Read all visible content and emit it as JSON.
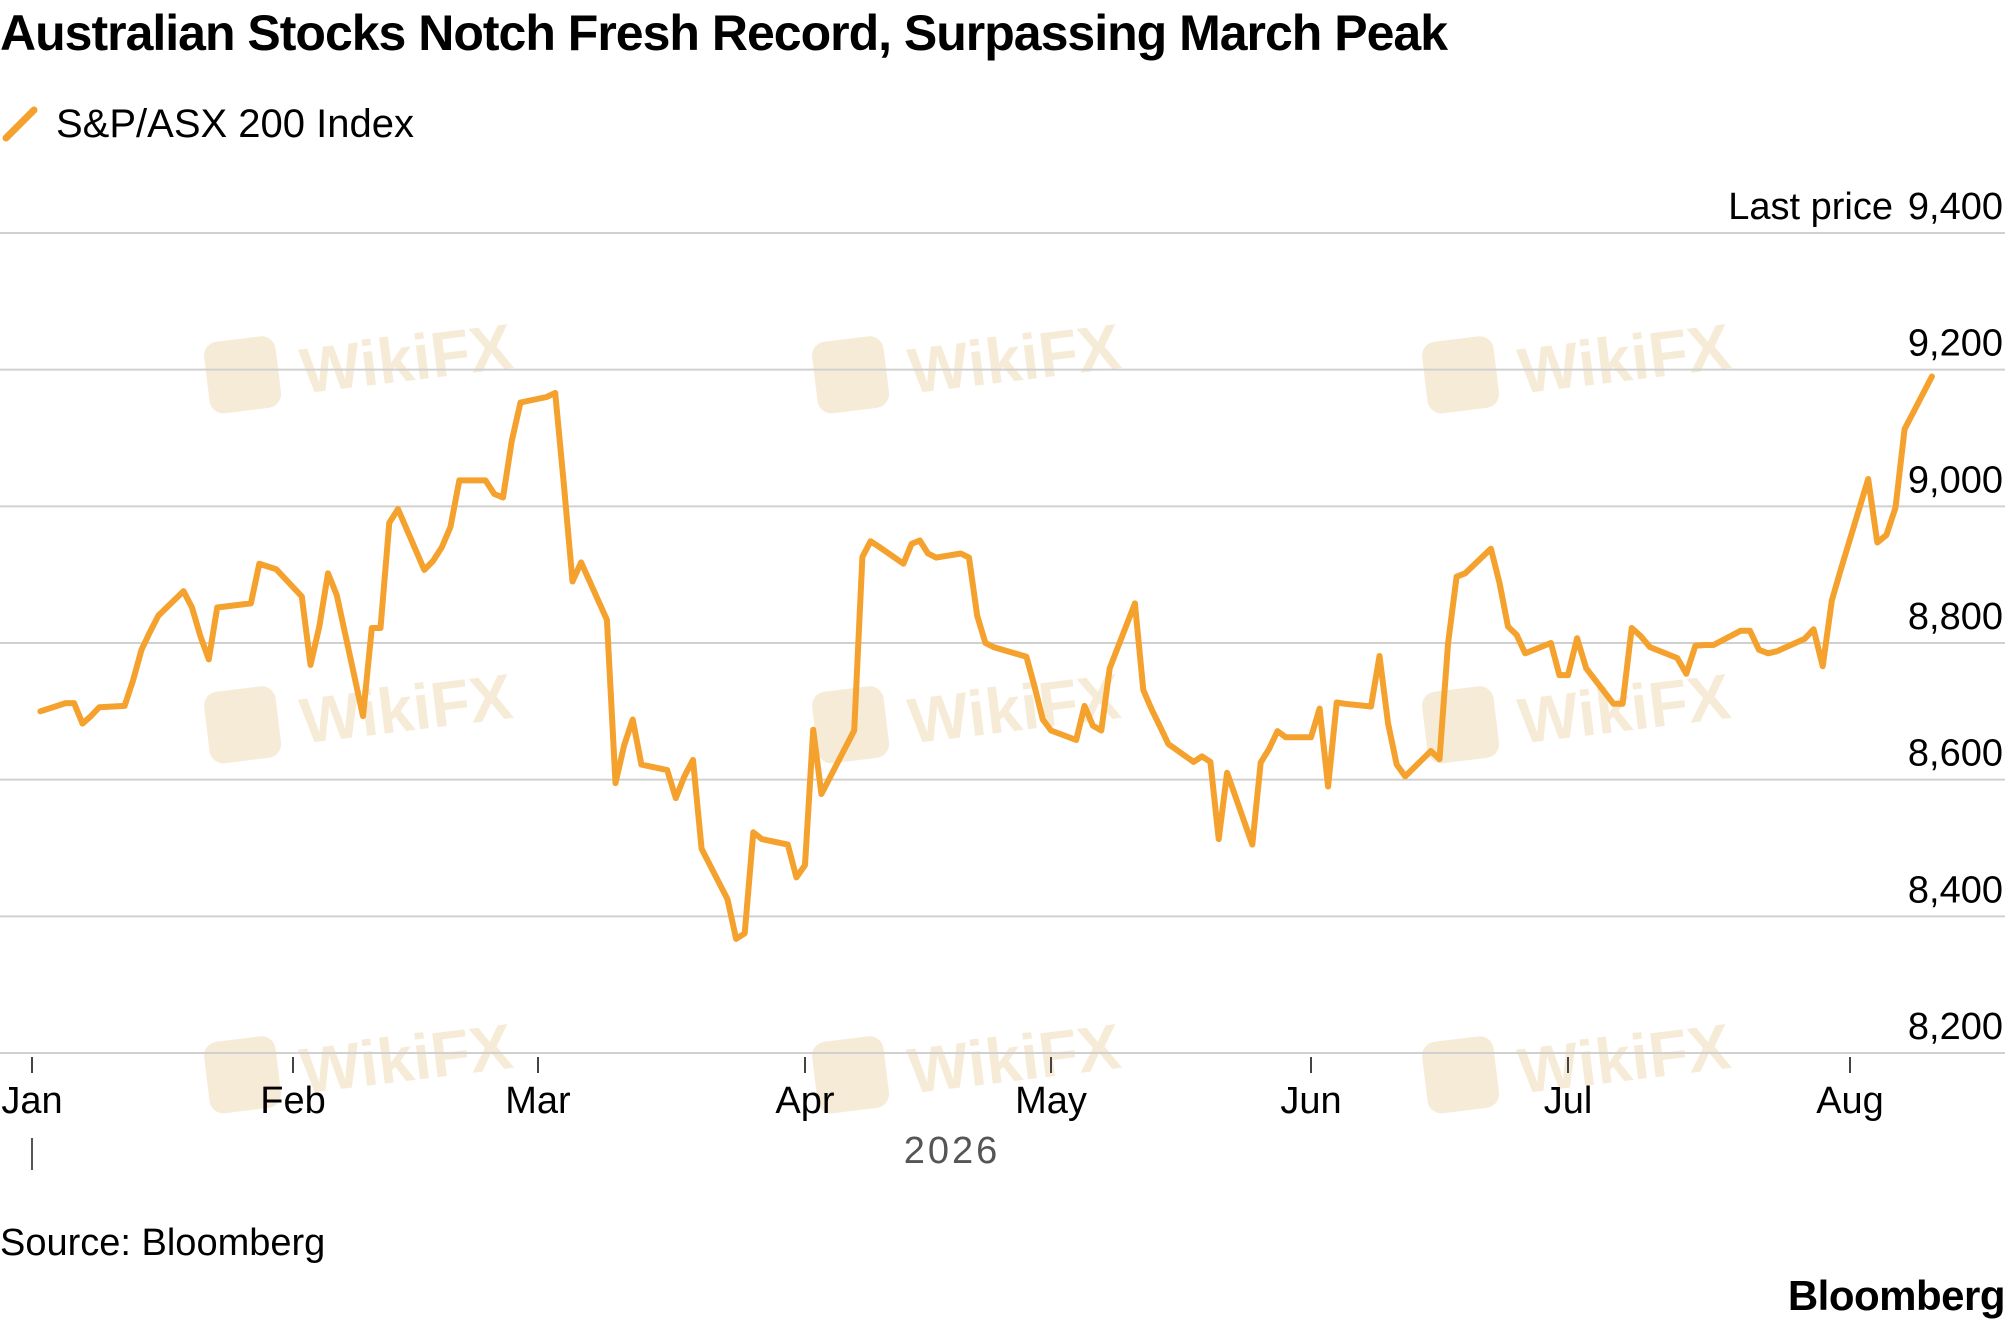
{
  "title": "Australian Stocks Notch Fresh Record, Surpassing March Peak",
  "source": "Source: Bloomberg",
  "brand": "Bloomberg",
  "watermark": "WikiFX",
  "colors": {
    "line": "#F5A12E",
    "grid": "#D0D0D0",
    "text": "#000000",
    "watermark": "#F6EBD6"
  },
  "chart_data": {
    "type": "line",
    "title": "Australian Stocks Notch Fresh Record, Surpassing March Peak",
    "legend": {
      "position": "top-left",
      "entries": [
        "S&P/ASX 200 Index"
      ]
    },
    "y_axis": {
      "side": "right",
      "header": "Last price",
      "ylim": [
        8200,
        9400
      ],
      "ticks": [
        8200,
        8400,
        8600,
        8800,
        9000,
        9200,
        9400
      ],
      "tick_labels": [
        "8,200",
        "8,400",
        "8,600",
        "8,800",
        "9,000",
        "9,200",
        "9,400"
      ],
      "grid": true
    },
    "x_axis": {
      "year_label": "2026",
      "tick_labels": [
        "Jan",
        "Feb",
        "Mar",
        "Apr",
        "May",
        "Jun",
        "Jul",
        "Aug"
      ],
      "tick_dates": [
        "2026-01-01",
        "2026-02-01",
        "2026-03-01",
        "2026-04-01",
        "2026-05-01",
        "2026-06-01",
        "2026-07-01",
        "2026-08-01"
      ]
    },
    "series": [
      {
        "name": "S&P/ASX 200 Index",
        "points": [
          [
            "2026-01-02",
            8700
          ],
          [
            "2026-01-05",
            8712
          ],
          [
            "2026-01-06",
            8712
          ],
          [
            "2026-01-07",
            8682
          ],
          [
            "2026-01-08",
            8693
          ],
          [
            "2026-01-09",
            8706
          ],
          [
            "2026-01-12",
            8708
          ],
          [
            "2026-01-13",
            8745
          ],
          [
            "2026-01-14",
            8790
          ],
          [
            "2026-01-15",
            8816
          ],
          [
            "2026-01-16",
            8840
          ],
          [
            "2026-01-19",
            8876
          ],
          [
            "2026-01-20",
            8852
          ],
          [
            "2026-01-21",
            8810
          ],
          [
            "2026-01-22",
            8776
          ],
          [
            "2026-01-23",
            8852
          ],
          [
            "2026-01-27",
            8858
          ],
          [
            "2026-01-28",
            8916
          ],
          [
            "2026-01-29",
            8912
          ],
          [
            "2026-01-30",
            8908
          ],
          [
            "2026-02-02",
            8868
          ],
          [
            "2026-02-03",
            8768
          ],
          [
            "2026-02-04",
            8824
          ],
          [
            "2026-02-05",
            8902
          ],
          [
            "2026-02-06",
            8870
          ],
          [
            "2026-02-09",
            8693
          ],
          [
            "2026-02-10",
            8822
          ],
          [
            "2026-02-11",
            8822
          ],
          [
            "2026-02-12",
            8976
          ],
          [
            "2026-02-13",
            8996
          ],
          [
            "2026-02-16",
            8907
          ],
          [
            "2026-02-17",
            8920
          ],
          [
            "2026-02-18",
            8940
          ],
          [
            "2026-02-19",
            8970
          ],
          [
            "2026-02-20",
            9038
          ],
          [
            "2026-02-23",
            9038
          ],
          [
            "2026-02-24",
            9018
          ],
          [
            "2026-02-25",
            9013
          ],
          [
            "2026-02-26",
            9096
          ],
          [
            "2026-02-27",
            9152
          ],
          [
            "2026-03-02",
            9160
          ],
          [
            "2026-03-03",
            9166
          ],
          [
            "2026-03-04",
            9033
          ],
          [
            "2026-03-05",
            8890
          ],
          [
            "2026-03-06",
            8918
          ],
          [
            "2026-03-09",
            8834
          ],
          [
            "2026-03-10",
            8595
          ],
          [
            "2026-03-11",
            8650
          ],
          [
            "2026-03-12",
            8688
          ],
          [
            "2026-03-13",
            8622
          ],
          [
            "2026-03-16",
            8614
          ],
          [
            "2026-03-17",
            8573
          ],
          [
            "2026-03-18",
            8605
          ],
          [
            "2026-03-19",
            8629
          ],
          [
            "2026-03-20",
            8499
          ],
          [
            "2026-03-23",
            8425
          ],
          [
            "2026-03-24",
            8367
          ],
          [
            "2026-03-25",
            8375
          ],
          [
            "2026-03-26",
            8523
          ],
          [
            "2026-03-27",
            8513
          ],
          [
            "2026-03-30",
            8505
          ],
          [
            "2026-03-31",
            8457
          ],
          [
            "2026-04-01",
            8475
          ],
          [
            "2026-04-02",
            8673
          ],
          [
            "2026-04-03",
            8579
          ],
          [
            "2026-04-07",
            8672
          ],
          [
            "2026-04-08",
            8926
          ],
          [
            "2026-04-09",
            8949
          ],
          [
            "2026-04-10",
            8941
          ],
          [
            "2026-04-13",
            8916
          ],
          [
            "2026-04-14",
            8945
          ],
          [
            "2026-04-15",
            8950
          ],
          [
            "2026-04-16",
            8931
          ],
          [
            "2026-04-17",
            8925
          ],
          [
            "2026-04-20",
            8931
          ],
          [
            "2026-04-21",
            8925
          ],
          [
            "2026-04-22",
            8840
          ],
          [
            "2026-04-23",
            8800
          ],
          [
            "2026-04-24",
            8794
          ],
          [
            "2026-04-28",
            8780
          ],
          [
            "2026-04-29",
            8736
          ],
          [
            "2026-04-30",
            8688
          ],
          [
            "2026-05-01",
            8672
          ],
          [
            "2026-05-04",
            8658
          ],
          [
            "2026-05-05",
            8708
          ],
          [
            "2026-05-06",
            8679
          ],
          [
            "2026-05-07",
            8672
          ],
          [
            "2026-05-08",
            8763
          ],
          [
            "2026-05-11",
            8858
          ],
          [
            "2026-05-12",
            8731
          ],
          [
            "2026-05-13",
            8703
          ],
          [
            "2026-05-14",
            8678
          ],
          [
            "2026-05-15",
            8652
          ],
          [
            "2026-05-18",
            8626
          ],
          [
            "2026-05-19",
            8634
          ],
          [
            "2026-05-20",
            8626
          ],
          [
            "2026-05-21",
            8513
          ],
          [
            "2026-05-22",
            8610
          ],
          [
            "2026-05-25",
            8505
          ],
          [
            "2026-05-26",
            8625
          ],
          [
            "2026-05-27",
            8645
          ],
          [
            "2026-05-28",
            8671
          ],
          [
            "2026-05-29",
            8662
          ],
          [
            "2026-06-01",
            8662
          ],
          [
            "2026-06-02",
            8704
          ],
          [
            "2026-06-03",
            8590
          ],
          [
            "2026-06-04",
            8713
          ],
          [
            "2026-06-05",
            8711
          ],
          [
            "2026-06-08",
            8707
          ],
          [
            "2026-06-09",
            8781
          ],
          [
            "2026-06-10",
            8682
          ],
          [
            "2026-06-11",
            8622
          ],
          [
            "2026-06-12",
            8605
          ],
          [
            "2026-06-15",
            8642
          ],
          [
            "2026-06-16",
            8630
          ],
          [
            "2026-06-17",
            8800
          ],
          [
            "2026-06-18",
            8897
          ],
          [
            "2026-06-19",
            8902
          ],
          [
            "2026-06-22",
            8938
          ],
          [
            "2026-06-23",
            8888
          ],
          [
            "2026-06-24",
            8824
          ],
          [
            "2026-06-25",
            8812
          ],
          [
            "2026-06-26",
            8785
          ],
          [
            "2026-06-29",
            8800
          ],
          [
            "2026-06-30",
            8753
          ],
          [
            "2026-07-01",
            8753
          ],
          [
            "2026-07-02",
            8807
          ],
          [
            "2026-07-03",
            8763
          ],
          [
            "2026-07-06",
            8711
          ],
          [
            "2026-07-07",
            8711
          ],
          [
            "2026-07-08",
            8822
          ],
          [
            "2026-07-09",
            8810
          ],
          [
            "2026-07-10",
            8794
          ],
          [
            "2026-07-13",
            8778
          ],
          [
            "2026-07-14",
            8755
          ],
          [
            "2026-07-15",
            8796
          ],
          [
            "2026-07-16",
            8797
          ],
          [
            "2026-07-17",
            8797
          ],
          [
            "2026-07-20",
            8818
          ],
          [
            "2026-07-21",
            8818
          ],
          [
            "2026-07-22",
            8790
          ],
          [
            "2026-07-23",
            8785
          ],
          [
            "2026-07-24",
            8788
          ],
          [
            "2026-07-27",
            8806
          ],
          [
            "2026-07-28",
            8820
          ],
          [
            "2026-07-29",
            8766
          ],
          [
            "2026-07-30",
            8862
          ],
          [
            "2026-07-31",
            8908
          ],
          [
            "2026-08-03",
            9040
          ],
          [
            "2026-08-04",
            8947
          ],
          [
            "2026-08-05",
            8958
          ],
          [
            "2026-08-06",
            8998
          ],
          [
            "2026-08-07",
            9113
          ],
          [
            "2026-08-10",
            9190
          ]
        ]
      }
    ]
  }
}
